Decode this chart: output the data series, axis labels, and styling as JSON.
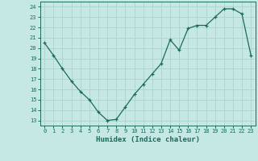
{
  "x": [
    0,
    1,
    2,
    3,
    4,
    5,
    6,
    7,
    8,
    9,
    10,
    11,
    12,
    13,
    14,
    15,
    16,
    17,
    18,
    19,
    20,
    21,
    22,
    23
  ],
  "y": [
    20.5,
    19.3,
    18.0,
    16.8,
    15.8,
    15.0,
    13.8,
    13.0,
    13.1,
    14.3,
    15.5,
    16.5,
    17.5,
    18.5,
    20.8,
    19.8,
    21.9,
    22.2,
    22.2,
    23.0,
    23.8,
    23.8,
    23.3,
    19.3
  ],
  "xlim": [
    -0.5,
    23.5
  ],
  "ylim": [
    12.5,
    24.5
  ],
  "yticks": [
    13,
    14,
    15,
    16,
    17,
    18,
    19,
    20,
    21,
    22,
    23,
    24
  ],
  "xticks": [
    0,
    1,
    2,
    3,
    4,
    5,
    6,
    7,
    8,
    9,
    10,
    11,
    12,
    13,
    14,
    15,
    16,
    17,
    18,
    19,
    20,
    21,
    22,
    23
  ],
  "xlabel": "Humidex (Indice chaleur)",
  "line_color": "#1a6b5a",
  "marker": "+",
  "bg_color": "#c5e8e5",
  "grid_color": "#b0d4d0",
  "tick_color": "#1a6b5a",
  "label_color": "#1a6b5a",
  "font": "monospace"
}
